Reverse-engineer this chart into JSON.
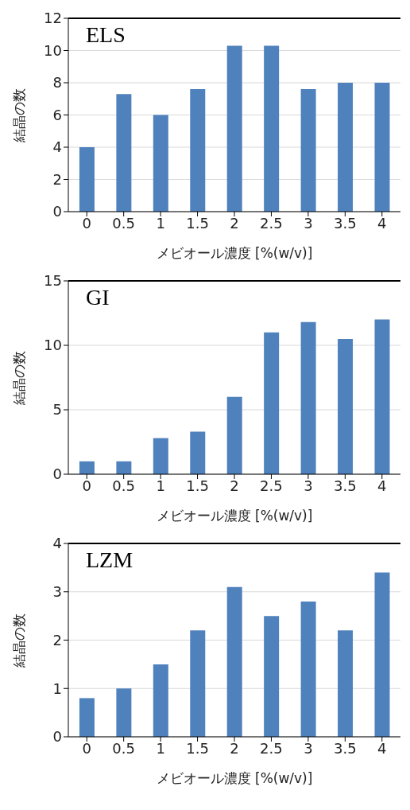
{
  "chart_data": [
    {
      "type": "bar",
      "title": "ELS",
      "xlabel": "メビオール濃度 [%(w/v)]",
      "ylabel": "結晶の数",
      "categories": [
        "0",
        "0.5",
        "1",
        "1.5",
        "2",
        "2.5",
        "3",
        "3.5",
        "4"
      ],
      "values": [
        4,
        7.3,
        6,
        7.6,
        10.3,
        10.3,
        7.6,
        8,
        8
      ],
      "color": "#4f81bd",
      "ylim": [
        0,
        12
      ],
      "yticks": [
        0,
        2,
        4,
        6,
        8,
        10,
        12
      ],
      "grid": "y"
    },
    {
      "type": "bar",
      "title": "GI",
      "xlabel": "メビオール濃度 [%(w/v)]",
      "ylabel": "結晶の数",
      "categories": [
        "0",
        "0.5",
        "1",
        "1.5",
        "2",
        "2.5",
        "3",
        "3.5",
        "4"
      ],
      "values": [
        1,
        1,
        2.8,
        3.3,
        6,
        11,
        11.8,
        10.5,
        12
      ],
      "color": "#4f81bd",
      "ylim": [
        0,
        15
      ],
      "yticks": [
        0,
        5,
        10,
        15
      ],
      "grid": "y"
    },
    {
      "type": "bar",
      "title": "LZM",
      "xlabel": "メビオール濃度 [%(w/v)]",
      "ylabel": "結晶の数",
      "categories": [
        "0",
        "0.5",
        "1",
        "1.5",
        "2",
        "2.5",
        "3",
        "3.5",
        "4"
      ],
      "values": [
        0.8,
        1,
        1.5,
        2.2,
        3.1,
        2.5,
        2.8,
        2.2,
        3.4
      ],
      "color": "#4f81bd",
      "ylim": [
        0,
        4
      ],
      "yticks": [
        0,
        1,
        2,
        3,
        4
      ],
      "grid": "y"
    }
  ]
}
